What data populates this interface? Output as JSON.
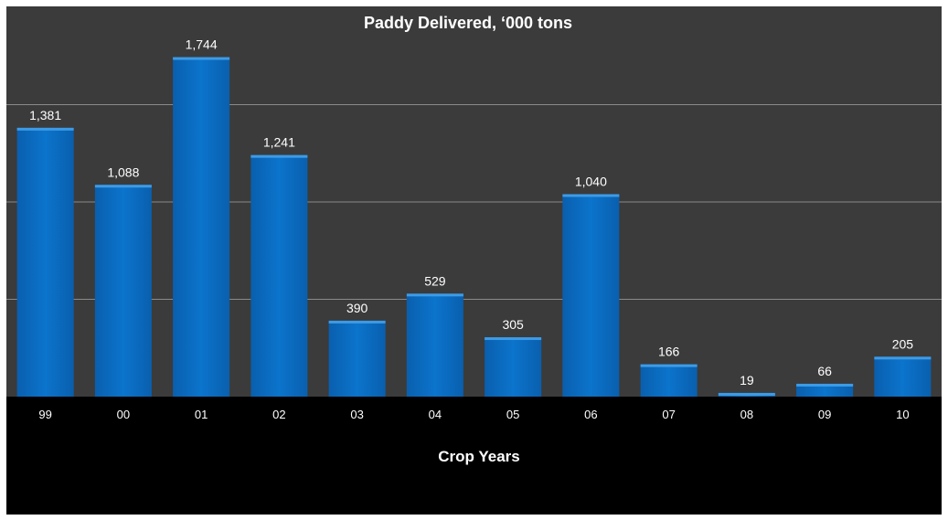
{
  "chart_data": {
    "type": "bar",
    "title": "Paddy Delivered, ‘000 tons",
    "xlabel": "Crop Years",
    "ylabel": "",
    "categories": [
      "99",
      "00",
      "01",
      "02",
      "03",
      "04",
      "05",
      "06",
      "07",
      "08",
      "09",
      "10"
    ],
    "values": [
      1381,
      1088,
      1744,
      1241,
      390,
      529,
      305,
      1040,
      166,
      19,
      66,
      205
    ],
    "data_labels": [
      "1,381",
      "1,088",
      "1,744",
      "1,241",
      "390",
      "529",
      "305",
      "1,040",
      "166",
      "19",
      "66",
      "205"
    ],
    "ylim": [
      0,
      2000
    ],
    "gridlines": [
      500,
      1000,
      1500
    ],
    "grid": true,
    "legend": "none",
    "colors": {
      "bar": "#0a6fc2",
      "bar_top": "#3d9be6",
      "plot_background": "#3b3b3b",
      "outer_background": "#000000",
      "grid": "#8a8a8a",
      "text": "#ffffff"
    }
  }
}
